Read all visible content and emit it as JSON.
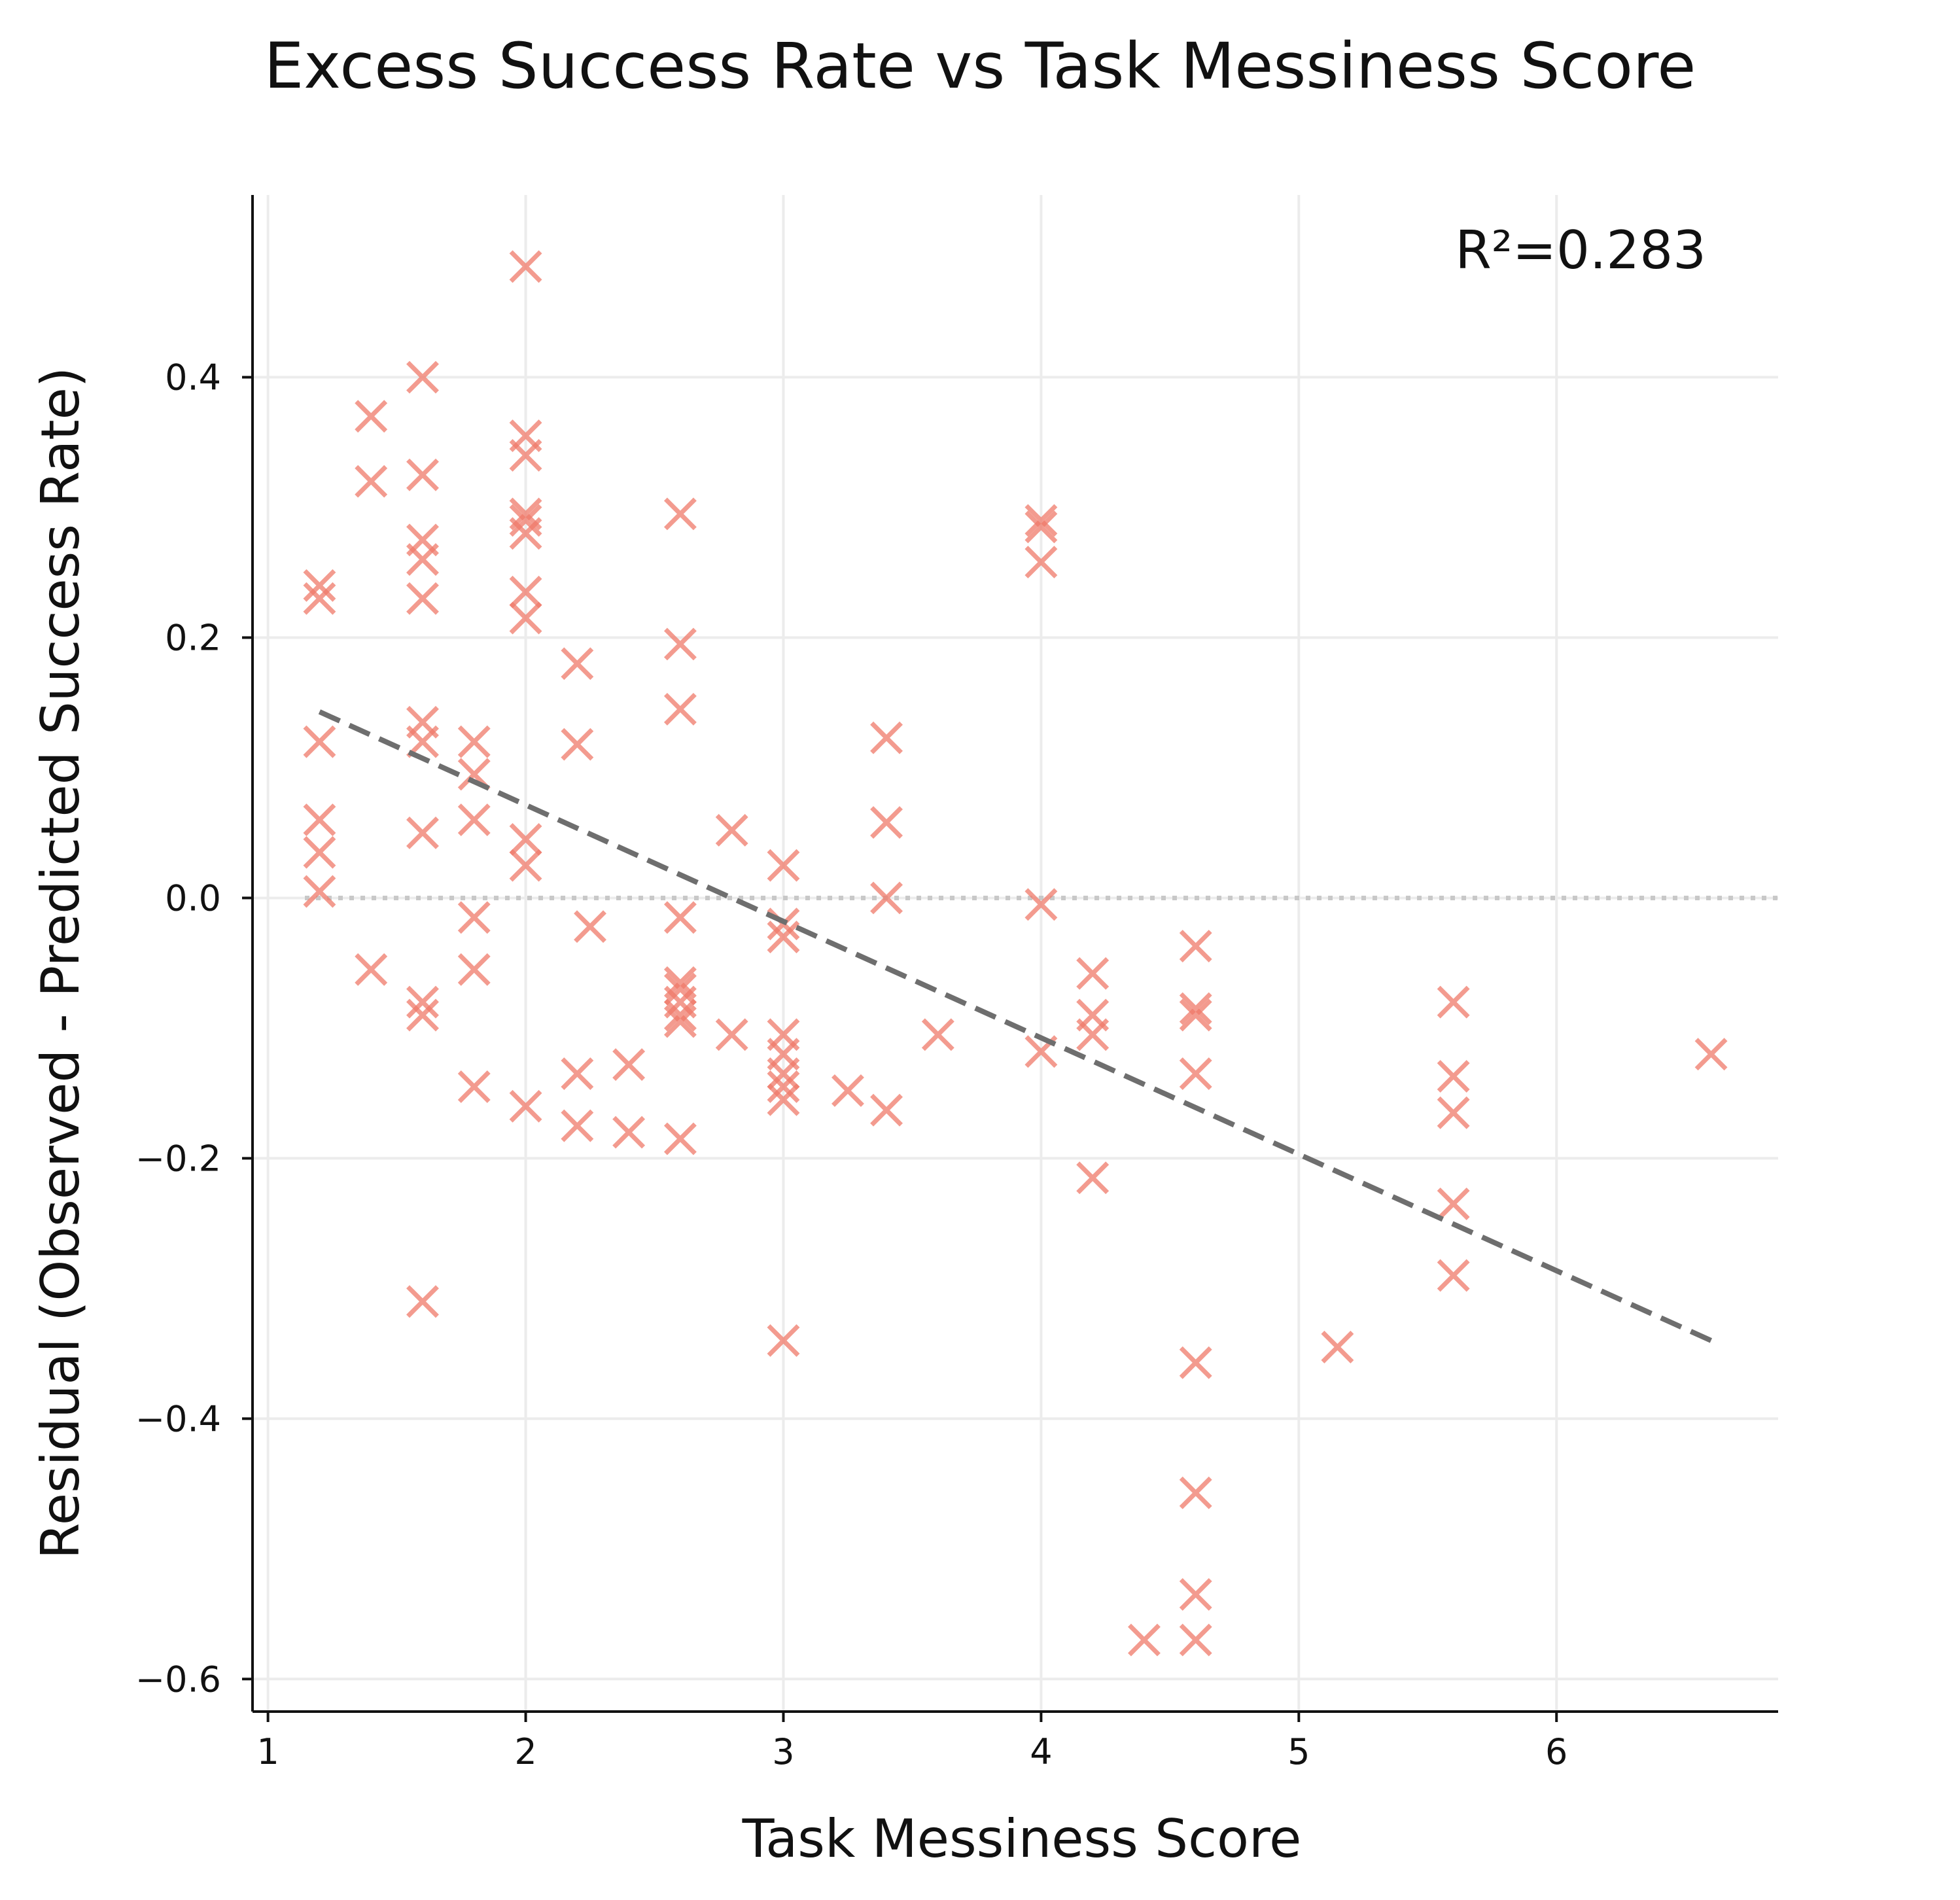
{
  "chart_data": {
    "type": "scatter",
    "title": "Excess Success Rate vs Task Messiness Score",
    "xlabel": "Task Messiness Score",
    "ylabel": "Residual (Observed - Predicted Success Rate)",
    "xlim": [
      0.94,
      6.86
    ],
    "ylim": [
      -0.625,
      0.54
    ],
    "x_ticks": [
      1,
      2,
      3,
      4,
      5,
      6
    ],
    "x_tick_labels": [
      "1",
      "2",
      "3",
      "4",
      "5",
      "6"
    ],
    "y_ticks": [
      -0.6,
      -0.4,
      -0.2,
      0.0,
      0.2,
      0.4
    ],
    "y_tick_labels": [
      "−0.6",
      "−0.4",
      "−0.2",
      "0.0",
      "0.2",
      "0.4"
    ],
    "grid": true,
    "marker": "x",
    "marker_color": "#f07a6a",
    "marker_opacity": 0.75,
    "trend_color": "#6e6e6e",
    "trend_line": {
      "x": [
        1.2,
        6.6
      ],
      "y": [
        0.143,
        -0.34
      ]
    },
    "reference_line_y": 0.0,
    "annotation": "R²=0.283",
    "annotation_position": "top-right",
    "points": [
      [
        1.2,
        0.24
      ],
      [
        1.2,
        0.23
      ],
      [
        1.2,
        0.12
      ],
      [
        1.2,
        0.06
      ],
      [
        1.2,
        0.035
      ],
      [
        1.2,
        0.005
      ],
      [
        1.4,
        0.37
      ],
      [
        1.4,
        0.32
      ],
      [
        1.4,
        -0.055
      ],
      [
        1.6,
        0.4
      ],
      [
        1.6,
        0.325
      ],
      [
        1.6,
        0.275
      ],
      [
        1.6,
        0.26
      ],
      [
        1.6,
        0.23
      ],
      [
        1.6,
        0.135
      ],
      [
        1.6,
        0.12
      ],
      [
        1.6,
        0.05
      ],
      [
        1.6,
        -0.08
      ],
      [
        1.6,
        -0.09
      ],
      [
        1.6,
        -0.31
      ],
      [
        1.8,
        0.12
      ],
      [
        1.8,
        0.095
      ],
      [
        1.8,
        0.06
      ],
      [
        1.8,
        -0.015
      ],
      [
        1.8,
        -0.055
      ],
      [
        1.8,
        -0.145
      ],
      [
        2.0,
        0.485
      ],
      [
        2.0,
        0.355
      ],
      [
        2.0,
        0.34
      ],
      [
        2.0,
        0.295
      ],
      [
        2.0,
        0.29
      ],
      [
        2.0,
        0.28
      ],
      [
        2.0,
        0.235
      ],
      [
        2.0,
        0.215
      ],
      [
        2.0,
        0.045
      ],
      [
        2.0,
        0.025
      ],
      [
        2.0,
        -0.16
      ],
      [
        2.2,
        0.18
      ],
      [
        2.2,
        0.118
      ],
      [
        2.2,
        -0.135
      ],
      [
        2.2,
        -0.175
      ],
      [
        2.25,
        -0.022
      ],
      [
        2.4,
        -0.128
      ],
      [
        2.4,
        -0.18
      ],
      [
        2.6,
        0.295
      ],
      [
        2.6,
        0.195
      ],
      [
        2.6,
        0.145
      ],
      [
        2.6,
        -0.015
      ],
      [
        2.6,
        -0.065
      ],
      [
        2.6,
        -0.07
      ],
      [
        2.6,
        -0.08
      ],
      [
        2.6,
        -0.09
      ],
      [
        2.6,
        -0.095
      ],
      [
        2.6,
        -0.185
      ],
      [
        2.8,
        0.052
      ],
      [
        2.8,
        -0.105
      ],
      [
        3.0,
        0.025
      ],
      [
        3.0,
        -0.02
      ],
      [
        3.0,
        -0.03
      ],
      [
        3.0,
        -0.105
      ],
      [
        3.0,
        -0.12
      ],
      [
        3.0,
        -0.135
      ],
      [
        3.0,
        -0.145
      ],
      [
        3.0,
        -0.155
      ],
      [
        3.0,
        -0.34
      ],
      [
        3.25,
        -0.148
      ],
      [
        3.4,
        0.123
      ],
      [
        3.4,
        0.058
      ],
      [
        3.4,
        0.0
      ],
      [
        3.4,
        -0.163
      ],
      [
        3.6,
        -0.105
      ],
      [
        4.0,
        0.29
      ],
      [
        4.0,
        0.285
      ],
      [
        4.0,
        0.258
      ],
      [
        4.0,
        -0.005
      ],
      [
        4.0,
        -0.118
      ],
      [
        4.2,
        -0.058
      ],
      [
        4.2,
        -0.09
      ],
      [
        4.2,
        -0.105
      ],
      [
        4.2,
        -0.215
      ],
      [
        4.4,
        -0.57
      ],
      [
        4.6,
        -0.037
      ],
      [
        4.6,
        -0.085
      ],
      [
        4.6,
        -0.09
      ],
      [
        4.6,
        -0.135
      ],
      [
        4.6,
        -0.357
      ],
      [
        4.6,
        -0.457
      ],
      [
        4.6,
        -0.535
      ],
      [
        4.6,
        -0.57
      ],
      [
        5.15,
        -0.345
      ],
      [
        5.6,
        -0.08
      ],
      [
        5.6,
        -0.137
      ],
      [
        5.6,
        -0.165
      ],
      [
        5.6,
        -0.235
      ],
      [
        5.6,
        -0.29
      ],
      [
        6.6,
        -0.12
      ]
    ]
  }
}
